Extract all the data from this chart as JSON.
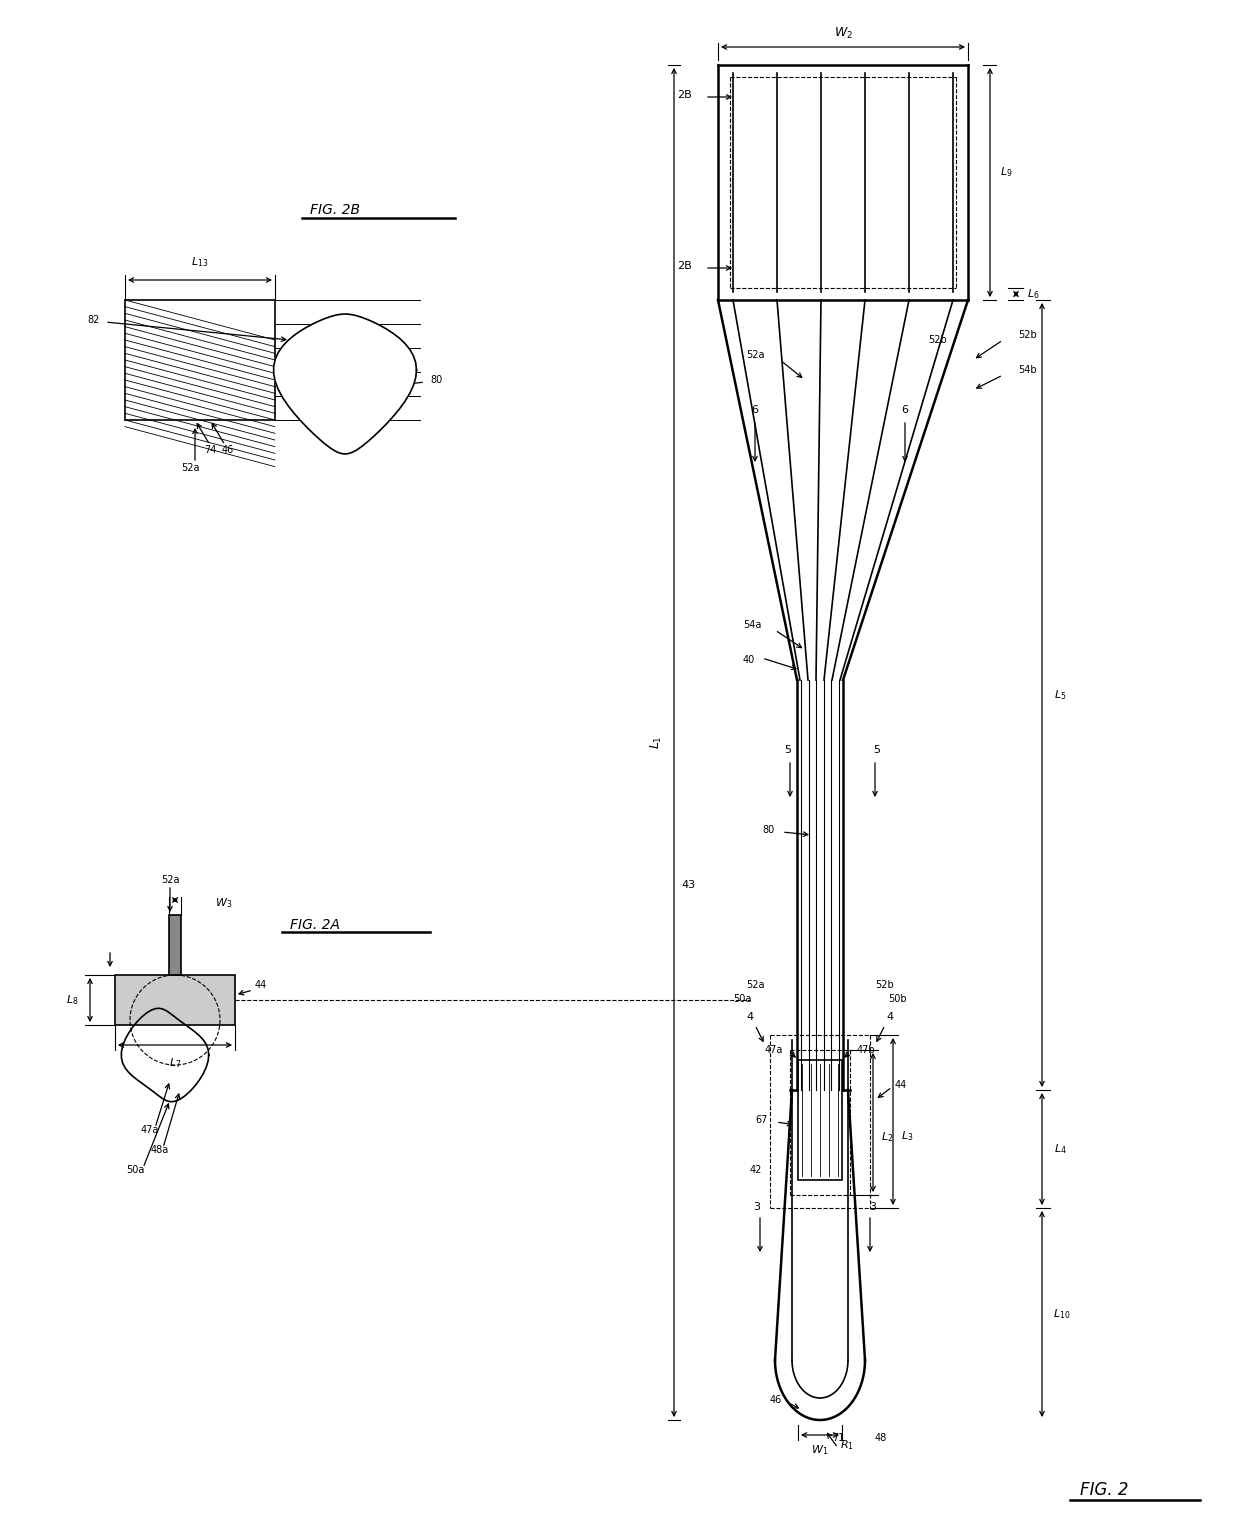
{
  "background_color": "#ffffff",
  "line_color": "#000000",
  "fig_width": 12.4,
  "fig_height": 15.24,
  "fig2_label": "FIG. 2",
  "fig2a_label": "FIG. 2A",
  "fig2b_label": "FIG. 2B"
}
